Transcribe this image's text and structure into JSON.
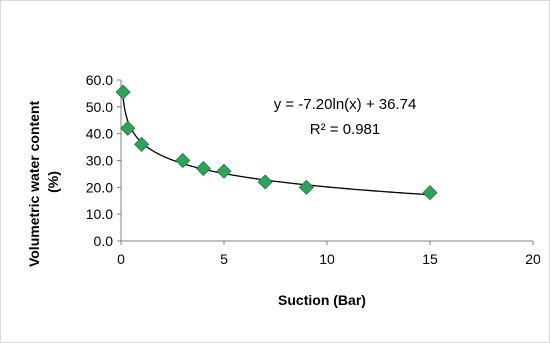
{
  "chart_data": {
    "type": "scatter",
    "xlabel": "Suction (Bar)",
    "ylabel": "Volumetric water content (%)",
    "ylabel_lines": [
      "Volumetric water content",
      "(%)"
    ],
    "xlim": [
      0,
      20
    ],
    "ylim": [
      0,
      60
    ],
    "x_ticks": [
      0,
      5,
      10,
      15,
      20
    ],
    "y_ticks": [
      0,
      10,
      20,
      30,
      40,
      50,
      60
    ],
    "x_tick_labels": [
      "0",
      "5",
      "10",
      "15",
      "20"
    ],
    "y_tick_labels": [
      "0.0",
      "10.0",
      "20.0",
      "30.0",
      "40.0",
      "50.0",
      "60.0"
    ],
    "grid": false,
    "series": [
      {
        "marker": "diamond",
        "color": "#2ea35a",
        "points": [
          {
            "x": 0.1,
            "y": 55.5
          },
          {
            "x": 0.33,
            "y": 42.0
          },
          {
            "x": 1.0,
            "y": 36.0
          },
          {
            "x": 3.0,
            "y": 30.0
          },
          {
            "x": 4.0,
            "y": 27.0
          },
          {
            "x": 5.0,
            "y": 26.0
          },
          {
            "x": 7.0,
            "y": 22.0
          },
          {
            "x": 9.0,
            "y": 20.0
          },
          {
            "x": 15.0,
            "y": 18.0
          }
        ]
      }
    ],
    "trendline": {
      "type": "logarithmic",
      "a": -7.2,
      "b": 36.74,
      "x_range": [
        0.1,
        15
      ],
      "color": "#000000",
      "equation_text": "y = -7.20ln(x) + 36.74",
      "r2_text": "R² = 0.981"
    }
  }
}
